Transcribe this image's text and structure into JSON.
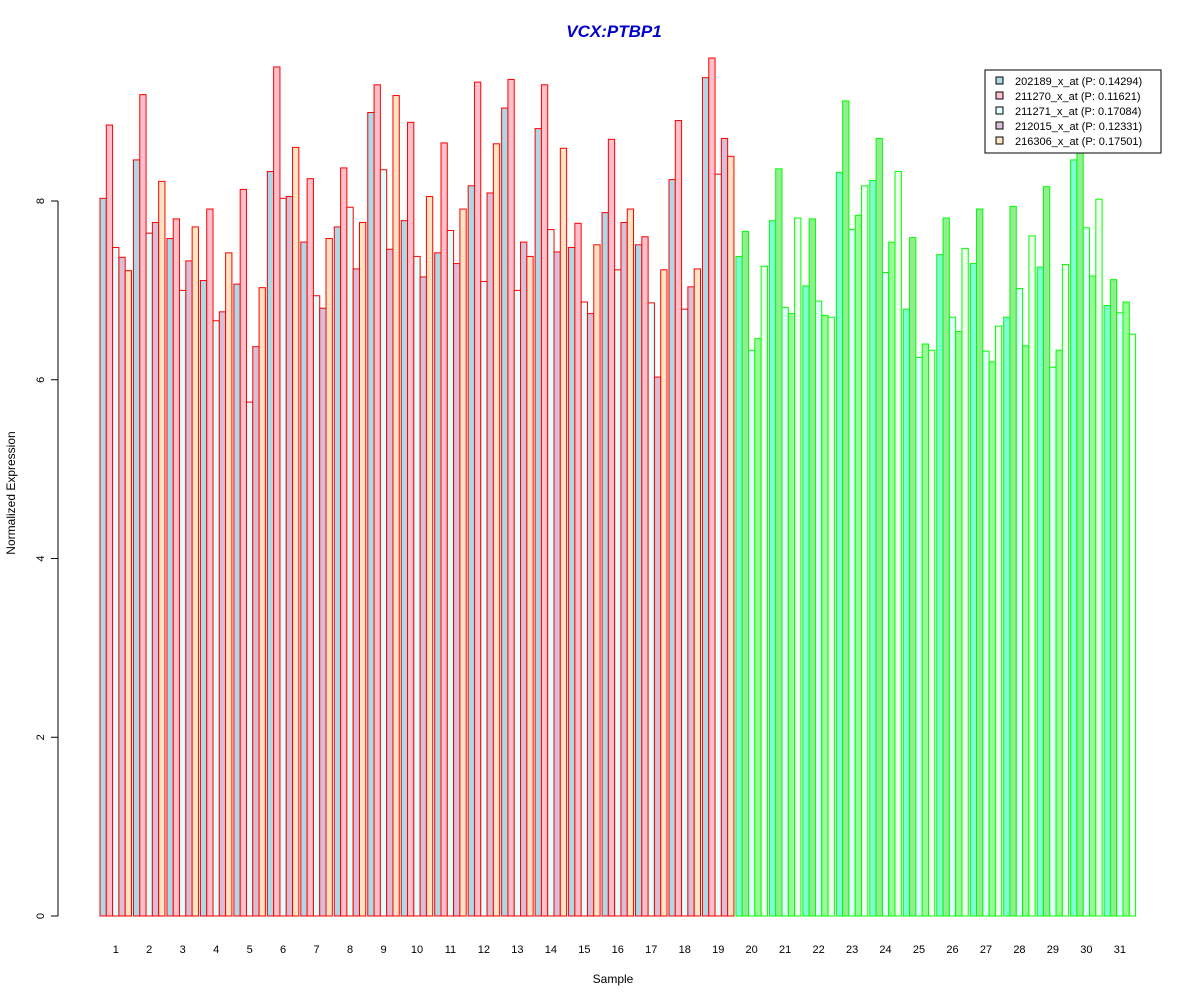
{
  "chart_data": {
    "type": "bar",
    "title": "VCX:PTBP1",
    "xlabel": "Sample",
    "ylabel": "Normalized Expression",
    "ylim": [
      0,
      9.6
    ],
    "yticks": [
      "0",
      "2",
      "4",
      "6",
      "8"
    ],
    "grid": false,
    "legend_position": "top-right",
    "categories": [
      "1",
      "2",
      "3",
      "4",
      "5",
      "6",
      "7",
      "8",
      "9",
      "10",
      "11",
      "12",
      "13",
      "14",
      "15",
      "16",
      "17",
      "18",
      "19",
      "20",
      "21",
      "22",
      "23",
      "24",
      "25",
      "26",
      "27",
      "28",
      "29",
      "30",
      "31"
    ],
    "group_colors": {
      "group1": "#ff0000",
      "group2": "#00ff00"
    },
    "group1_count": 19,
    "fill_colors": [
      "#add8e6",
      "#ffc0cb",
      "#e0ffff",
      "#d8bfd8",
      "#ffe4c4"
    ],
    "group2_fill_overrides": [
      "#7fffd4",
      "#90ee90",
      "#e0ffff",
      "#98fb98",
      "#f0fff0"
    ],
    "series": [
      {
        "name": "202189_x_at (P: 0.14294)",
        "values": [
          8.03,
          8.46,
          7.58,
          7.11,
          7.07,
          8.33,
          7.54,
          7.71,
          8.99,
          7.78,
          7.42,
          8.17,
          9.04,
          8.81,
          7.48,
          7.87,
          7.51,
          8.24,
          9.38,
          7.38,
          7.78,
          7.05,
          8.32,
          8.23,
          6.79,
          7.4,
          7.3,
          6.7,
          7.26,
          8.46,
          6.83
        ]
      },
      {
        "name": "211270_x_at (P: 0.11621)",
        "values": [
          8.85,
          9.19,
          7.8,
          7.91,
          8.13,
          9.5,
          8.25,
          8.37,
          9.3,
          8.88,
          8.65,
          9.33,
          9.36,
          9.3,
          7.75,
          8.69,
          7.6,
          8.9,
          9.6,
          7.66,
          8.36,
          7.8,
          9.12,
          8.7,
          7.59,
          7.81,
          7.91,
          7.94,
          8.16,
          8.9,
          7.12
        ]
      },
      {
        "name": "211271_x_at (P: 0.17084)",
        "values": [
          7.48,
          7.64,
          7.0,
          6.66,
          5.75,
          8.03,
          6.94,
          7.93,
          8.35,
          7.38,
          7.67,
          7.1,
          7.0,
          7.68,
          6.87,
          7.23,
          6.86,
          6.79,
          8.3,
          6.33,
          6.81,
          6.88,
          7.68,
          7.2,
          6.25,
          6.7,
          6.32,
          7.02,
          6.14,
          7.7,
          6.75
        ]
      },
      {
        "name": "212015_x_at (P: 0.12331)",
        "values": [
          7.37,
          7.76,
          7.33,
          6.76,
          6.37,
          8.05,
          6.8,
          7.24,
          7.46,
          7.15,
          7.3,
          8.09,
          7.54,
          7.43,
          6.74,
          7.76,
          6.03,
          7.04,
          8.7,
          6.46,
          6.74,
          6.72,
          7.84,
          7.54,
          6.4,
          6.54,
          6.2,
          6.38,
          6.33,
          7.16,
          6.87
        ]
      },
      {
        "name": "216306_x_at (P: 0.17501)",
        "values": [
          7.22,
          8.22,
          7.71,
          7.42,
          7.03,
          8.6,
          7.58,
          7.76,
          9.18,
          8.05,
          7.91,
          8.64,
          7.38,
          8.59,
          7.51,
          7.91,
          7.23,
          7.24,
          8.5,
          7.27,
          7.81,
          6.7,
          8.17,
          8.33,
          6.33,
          7.47,
          6.6,
          7.61,
          7.29,
          8.02,
          6.51
        ]
      }
    ]
  }
}
